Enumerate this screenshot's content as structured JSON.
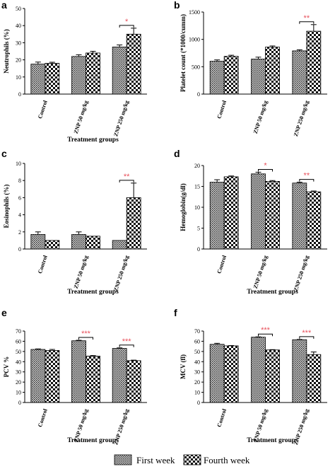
{
  "chart_data": [
    {
      "panel": "a",
      "type": "bar",
      "ylabel": "Neutrophils (%)",
      "xlabel": "Treatment groups",
      "categories": [
        "Control",
        "ZNP 50 mg/kg",
        "ZNP 250 mg/kg"
      ],
      "yticks": [
        0,
        10,
        20,
        30,
        40,
        50
      ],
      "ylim": [
        0,
        50
      ],
      "series": [
        {
          "name": "First week",
          "values": [
            17.5,
            22,
            27.5
          ],
          "errors": [
            1.2,
            1.0,
            1.2
          ]
        },
        {
          "name": "Fourth week",
          "values": [
            18,
            24,
            35
          ],
          "errors": [
            0.6,
            1.0,
            3.5
          ]
        }
      ],
      "significance": [
        {
          "category": 2,
          "label": "*"
        }
      ]
    },
    {
      "panel": "b",
      "type": "bar",
      "ylabel": "Platelet count (*1000/cumm)",
      "xlabel": "",
      "categories": [
        "Control",
        "ZNP 50 mg/kg",
        "ZNP 250 mg/kg"
      ],
      "yticks": [
        0,
        500,
        1000,
        1500
      ],
      "ylim": [
        0,
        1500
      ],
      "series": [
        {
          "name": "First week",
          "values": [
            600,
            640,
            790
          ],
          "errors": [
            25,
            35,
            20
          ]
        },
        {
          "name": "Fourth week",
          "values": [
            690,
            860,
            1150
          ],
          "errors": [
            20,
            20,
            120
          ]
        }
      ],
      "significance": [
        {
          "category": 2,
          "label": "**"
        }
      ]
    },
    {
      "panel": "c",
      "type": "bar",
      "ylabel": "Eosinophils (%)",
      "xlabel": "Treatment groups",
      "categories": [
        "Control",
        "ZNP 50 mg/kg",
        "ZNP 250 mg/kg"
      ],
      "yticks": [
        0,
        2,
        4,
        6,
        8,
        10
      ],
      "ylim": [
        0,
        10
      ],
      "series": [
        {
          "name": "First week",
          "values": [
            1.7,
            1.7,
            1.0
          ],
          "errors": [
            0.3,
            0.3,
            0.0
          ]
        },
        {
          "name": "Fourth week",
          "values": [
            1.0,
            1.5,
            6.0
          ],
          "errors": [
            0.0,
            0.0,
            1.7
          ]
        }
      ],
      "significance": [
        {
          "category": 2,
          "label": "**"
        }
      ]
    },
    {
      "panel": "d",
      "type": "bar",
      "ylabel": "Hemoglobin(g/dl)",
      "xlabel": "Treatment groups",
      "categories": [
        "Control",
        "ZNP 50 mg/kg",
        "ZNP 250 mg/kg"
      ],
      "yticks": [
        0,
        5,
        10,
        15,
        20
      ],
      "ylim": [
        0,
        20
      ],
      "series": [
        {
          "name": "First week",
          "values": [
            16.0,
            18.0,
            15.8
          ],
          "errors": [
            0.6,
            0.4,
            0.2
          ]
        },
        {
          "name": "Fourth week",
          "values": [
            17.3,
            16.2,
            13.7
          ],
          "errors": [
            0.2,
            0.2,
            0.2
          ]
        }
      ],
      "significance": [
        {
          "category": 1,
          "label": "*"
        },
        {
          "category": 2,
          "label": "**"
        }
      ]
    },
    {
      "panel": "e",
      "type": "bar",
      "ylabel": "PCV %",
      "xlabel": "Treatment groups",
      "categories": [
        "Control",
        "ZNP 50 mg/kg",
        "ZNP 250 mg/kg"
      ],
      "yticks": [
        0,
        10,
        20,
        30,
        40,
        50,
        60,
        70
      ],
      "ylim": [
        0,
        70
      ],
      "series": [
        {
          "name": "First week",
          "values": [
            52,
            60.5,
            53
          ],
          "errors": [
            0.5,
            0.5,
            0.5
          ]
        },
        {
          "name": "Fourth week",
          "values": [
            51,
            45.5,
            41
          ],
          "errors": [
            1.0,
            0.5,
            0.5
          ]
        }
      ],
      "significance": [
        {
          "category": 1,
          "label": "***"
        },
        {
          "category": 2,
          "label": "***"
        }
      ]
    },
    {
      "panel": "f",
      "type": "bar",
      "ylabel": "MCV (fl)",
      "xlabel": "Treatment groups",
      "categories": [
        "Control",
        "ZNP 50 mg/kg",
        "ZNP 250 mg/kg"
      ],
      "yticks": [
        0,
        10,
        20,
        30,
        40,
        50,
        60,
        70
      ],
      "ylim": [
        0,
        70
      ],
      "series": [
        {
          "name": "First week",
          "values": [
            57,
            64,
            61.5
          ],
          "errors": [
            1.0,
            0.3,
            0.3
          ]
        },
        {
          "name": "Fourth week",
          "values": [
            55.5,
            51.5,
            47
          ],
          "errors": [
            0.3,
            0.3,
            2.5
          ]
        }
      ],
      "significance": [
        {
          "category": 1,
          "label": "***"
        },
        {
          "category": 2,
          "label": "***"
        }
      ]
    }
  ],
  "legend": {
    "items": [
      {
        "label": "First week",
        "pattern": "dense"
      },
      {
        "label": "Fourth week",
        "pattern": "check"
      }
    ]
  },
  "colors": {
    "significance": "#e8505b",
    "ink": "#000000"
  }
}
